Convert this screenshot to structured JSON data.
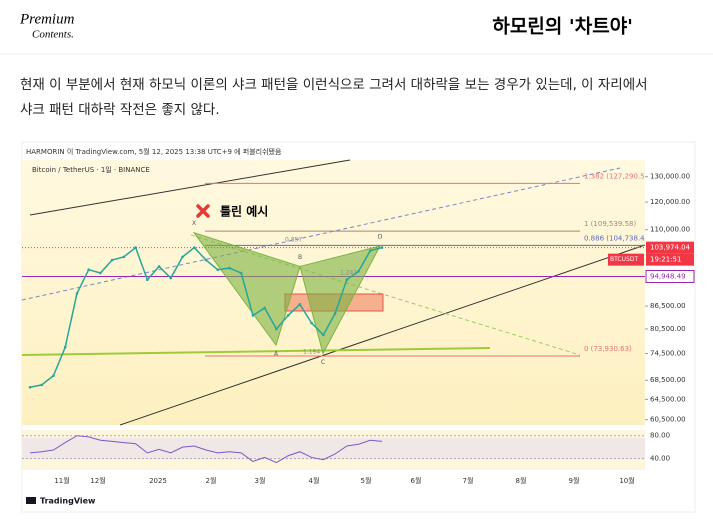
{
  "header": {
    "logo_line1": "Premium",
    "logo_line2": "Contents.",
    "title": "하모린의 '차트야'"
  },
  "paragraph": [
    "현재 이 부분에서 현재 하모닉 이론의 샤크 패턴을 이런식으로 그려서 대하락을 보는 경우가 있는데, 이 자리에서",
    "샤크 패턴 대하락 작전은 좋지 않다."
  ],
  "chart_data": {
    "type": "line",
    "publish_note": "HARMORIN 이 TradingView.com, 5월 12, 2025 13:38 UTC+9 에 퍼블리쉬됐음",
    "symbol": "Bitcoin / TetherUS · 1일 · BINANCE",
    "annotation": "틀린 예시",
    "log_scale": true,
    "ylim": [
      137000,
      59500
    ],
    "yticks": [
      {
        "value": 130000,
        "label": "130,000.00"
      },
      {
        "value": 120000,
        "label": "120,000.00"
      },
      {
        "value": 110000,
        "label": "110,000.00"
      },
      {
        "value": 86500,
        "label": "86,500.00"
      },
      {
        "value": 80500,
        "label": "80,500.00"
      },
      {
        "value": 74500,
        "label": "74,500.00"
      },
      {
        "value": 68500,
        "label": "68,500.00"
      },
      {
        "value": 64500,
        "label": "64,500.00"
      },
      {
        "value": 60500,
        "label": "60,500.00"
      }
    ],
    "xticks": [
      "11월",
      "12월",
      "2025",
      "2월",
      "3월",
      "4월",
      "5월",
      "6월",
      "7월",
      "8월",
      "9월",
      "10월"
    ],
    "series": [
      {
        "name": "BTCUSDT",
        "color": "#26a69a",
        "values": [
          67000,
          67500,
          69500,
          76000,
          90000,
          97000,
          96000,
          100000,
          101000,
          104000,
          94000,
          98000,
          94500,
          101000,
          104000,
          100000,
          97000,
          97500,
          96000,
          84000,
          86000,
          80500,
          84000,
          87000,
          82000,
          79000,
          84500,
          94000,
          96500,
          103000,
          104000
        ]
      }
    ],
    "last_price": {
      "value": 103974.04,
      "label": "103,974.04",
      "symbol": "BTCUSDT",
      "countdown": "19:21:51",
      "color": "#f23645"
    },
    "marked_price": {
      "value": 94948.49,
      "label": "94,948.49",
      "color": "#9c27b0"
    },
    "fib_levels": [
      {
        "value": 127290.5,
        "label": "1.382 (127,290.5",
        "color": "#e57373"
      },
      {
        "value": 109539.58,
        "label": "1 (109,539.58)",
        "color": "#a1887f"
      },
      {
        "value": 104738.4,
        "label": "0.886 (104,738.4",
        "color": "#5c6bc0"
      },
      {
        "value": 73930.63,
        "label": "0 (73,930.63)",
        "color": "#e57373"
      }
    ],
    "pattern": {
      "color": "#7cb342",
      "points": [
        {
          "label": "X",
          "value": 109000
        },
        {
          "label": "A",
          "value": 76500
        },
        {
          "label": "B",
          "value": 98000
        },
        {
          "label": "C",
          "value": 74500
        },
        {
          "label": "D",
          "value": 104500
        }
      ],
      "ratios": [
        "0.857",
        "1.194",
        "1.241"
      ]
    },
    "rsi": {
      "ylim": [
        20,
        90
      ],
      "yticks": [
        {
          "value": 80,
          "label": "80.00"
        },
        {
          "value": 40,
          "label": "40.00"
        }
      ],
      "color": "#7e57c2",
      "values": [
        50,
        52,
        55,
        68,
        80,
        78,
        72,
        70,
        68,
        66,
        50,
        56,
        50,
        60,
        62,
        55,
        50,
        52,
        50,
        35,
        42,
        33,
        45,
        52,
        42,
        38,
        48,
        62,
        65,
        72,
        70
      ]
    },
    "brand": "TradingView"
  }
}
